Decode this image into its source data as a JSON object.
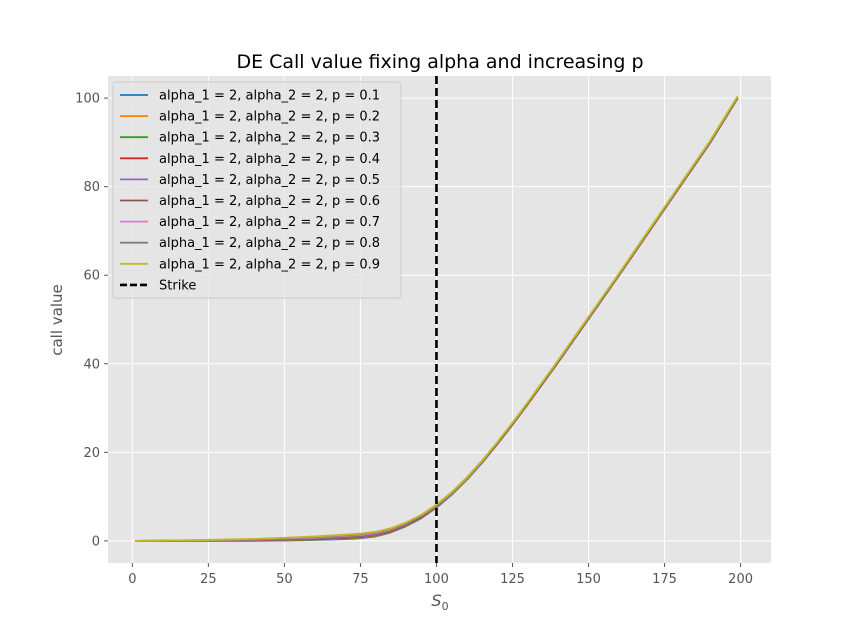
{
  "chart_data": {
    "type": "line",
    "title": "DE Call value fixing alpha and increasing p",
    "xlabel": "S",
    "xlabel_sub": "0",
    "ylabel": "call value",
    "xlim": [
      -8,
      210
    ],
    "ylim": [
      -5,
      105
    ],
    "xticks": [
      0,
      25,
      50,
      75,
      100,
      125,
      150,
      175,
      200
    ],
    "yticks": [
      0,
      20,
      40,
      60,
      80,
      100
    ],
    "grid": true,
    "background": "#e5e5e5",
    "legend_position": "top-left",
    "x": [
      1,
      10,
      20,
      30,
      40,
      50,
      60,
      70,
      75,
      80,
      85,
      90,
      95,
      100,
      105,
      110,
      115,
      120,
      125,
      130,
      140,
      150,
      160,
      170,
      180,
      190,
      199
    ],
    "series": [
      {
        "name": "alpha_1 = 2, alpha_2 = 2, p = 0.1",
        "color": "#1f77b4",
        "values": [
          0,
          0,
          0,
          0,
          0,
          0.1,
          0.2,
          0.4,
          0.6,
          1.0,
          1.9,
          3.3,
          5.1,
          7.5,
          10.4,
          13.8,
          17.6,
          21.8,
          26.2,
          30.8,
          40.3,
          50.1,
          59.9,
          69.9,
          79.9,
          89.9,
          99.9
        ]
      },
      {
        "name": "alpha_1 = 2, alpha_2 = 2, p = 0.2",
        "color": "#ff7f0e",
        "values": [
          0,
          0,
          0,
          0,
          0.1,
          0.15,
          0.3,
          0.5,
          0.7,
          1.1,
          2.0,
          3.4,
          5.2,
          7.6,
          10.5,
          13.9,
          17.7,
          21.9,
          26.3,
          30.9,
          40.4,
          50.2,
          60.0,
          70.0,
          80.0,
          90.0,
          100.0
        ]
      },
      {
        "name": "alpha_1 = 2, alpha_2 = 2, p = 0.3",
        "color": "#2ca02c",
        "values": [
          0,
          0,
          0,
          0.05,
          0.1,
          0.2,
          0.35,
          0.6,
          0.8,
          1.2,
          2.1,
          3.5,
          5.3,
          7.7,
          10.6,
          14.0,
          17.8,
          22.0,
          26.4,
          31.0,
          40.5,
          50.3,
          60.1,
          70.1,
          80.1,
          90.1,
          100.1
        ]
      },
      {
        "name": "alpha_1 = 2, alpha_2 = 2, p = 0.4",
        "color": "#d62728",
        "values": [
          0,
          0,
          0.05,
          0.1,
          0.15,
          0.25,
          0.45,
          0.7,
          0.9,
          1.3,
          2.2,
          3.6,
          5.4,
          7.8,
          10.7,
          14.1,
          17.9,
          22.0,
          26.4,
          31.0,
          40.5,
          50.3,
          60.1,
          70.1,
          80.1,
          90.1,
          100.1
        ]
      },
      {
        "name": "alpha_1 = 2, alpha_2 = 2, p = 0.5",
        "color": "#9467bd",
        "values": [
          0,
          0.02,
          0.05,
          0.1,
          0.2,
          0.3,
          0.55,
          0.8,
          1.0,
          1.4,
          2.3,
          3.7,
          5.5,
          7.8,
          10.7,
          14.1,
          17.9,
          22.1,
          26.5,
          31.1,
          40.6,
          50.4,
          60.2,
          70.2,
          80.2,
          90.2,
          100.2
        ]
      },
      {
        "name": "alpha_1 = 2, alpha_2 = 2, p = 0.6",
        "color": "#8c564b",
        "values": [
          0,
          0.02,
          0.1,
          0.15,
          0.25,
          0.4,
          0.65,
          0.95,
          1.15,
          1.55,
          2.4,
          3.8,
          5.6,
          7.9,
          10.8,
          14.2,
          18.0,
          22.1,
          26.5,
          31.1,
          40.6,
          50.4,
          60.2,
          70.2,
          80.2,
          90.2,
          100.2
        ]
      },
      {
        "name": "alpha_1 = 2, alpha_2 = 2, p = 0.7",
        "color": "#e377c2",
        "values": [
          0,
          0.03,
          0.1,
          0.2,
          0.3,
          0.5,
          0.75,
          1.1,
          1.3,
          1.7,
          2.55,
          3.9,
          5.7,
          8.0,
          10.8,
          14.2,
          18.0,
          22.2,
          26.6,
          31.2,
          40.7,
          50.5,
          60.3,
          70.3,
          80.3,
          90.3,
          100.3
        ]
      },
      {
        "name": "alpha_1 = 2, alpha_2 = 2, p = 0.8",
        "color": "#7f7f7f",
        "values": [
          0,
          0.04,
          0.12,
          0.25,
          0.35,
          0.6,
          0.9,
          1.25,
          1.5,
          1.9,
          2.7,
          4.0,
          5.8,
          8.1,
          10.9,
          14.3,
          18.1,
          22.2,
          26.6,
          31.2,
          40.7,
          50.5,
          60.3,
          70.3,
          80.3,
          90.3,
          100.3
        ]
      },
      {
        "name": "alpha_1 = 2, alpha_2 = 2, p = 0.9",
        "color": "#bcbd22",
        "values": [
          0,
          0.05,
          0.15,
          0.3,
          0.45,
          0.7,
          1.0,
          1.4,
          1.65,
          2.05,
          2.85,
          4.15,
          5.9,
          8.2,
          11.0,
          14.3,
          18.1,
          22.3,
          26.7,
          31.3,
          40.8,
          50.6,
          60.4,
          70.4,
          80.4,
          90.4,
          100.4
        ]
      }
    ],
    "strike": {
      "name": "Strike",
      "x": 100,
      "color": "#000000"
    }
  }
}
